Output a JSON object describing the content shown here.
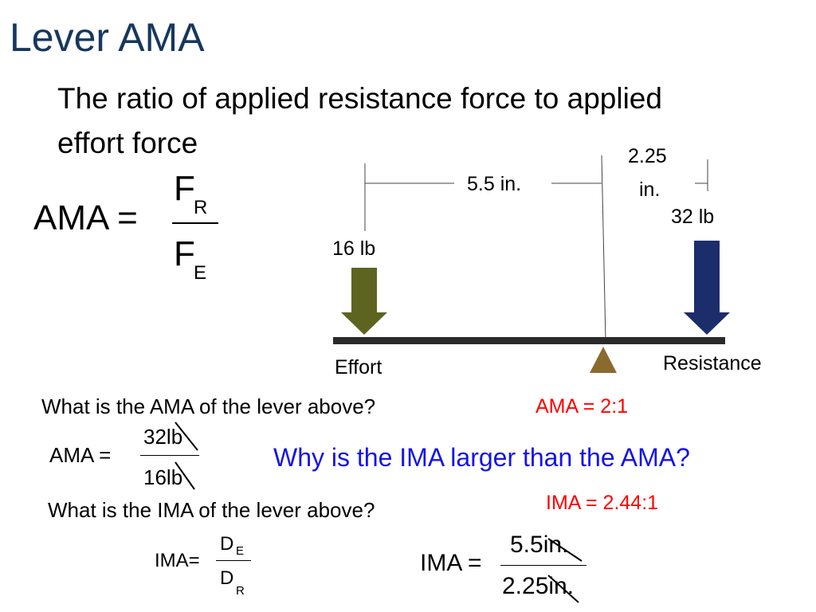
{
  "slide": {
    "title": "Lever AMA",
    "subtitle": "The ratio of applied resistance force to applied effort force"
  },
  "formula": {
    "lhs": "AMA =",
    "num_main": "F",
    "num_sub": "R",
    "den_main": "F",
    "den_sub": "E"
  },
  "diagram": {
    "dist_effort": "5.5 in.",
    "dist_resistance_line1": "2.25",
    "dist_resistance_line2": "in.",
    "effort_force": "16 lb",
    "resistance_force": "32 lb",
    "effort_label": "Effort",
    "resistance_label": "Resistance",
    "colors": {
      "effort_arrow": "#5c6420",
      "resistance_arrow": "#1c2d6b",
      "fulcrum": "#8b6a2e",
      "beam": "#2a2a2a"
    }
  },
  "ama_question": {
    "question": "What is the AMA of the lever above?",
    "answer": "AMA = 2:1",
    "lhs": "AMA =",
    "numerator": "32lb",
    "denominator": "16lb"
  },
  "why_question": "Why is the IMA larger than the AMA?",
  "ima_question": {
    "question": "What is the IMA of the lever above?",
    "answer": "IMA = 2.44:1",
    "formula_lhs": "IMA=",
    "formula_num_main": "D",
    "formula_num_sub": "E",
    "formula_den_main": "D",
    "formula_den_sub": "R",
    "calc_lhs": "IMA =",
    "calc_numerator": "5.5in.",
    "calc_denominator": "2.25in."
  }
}
